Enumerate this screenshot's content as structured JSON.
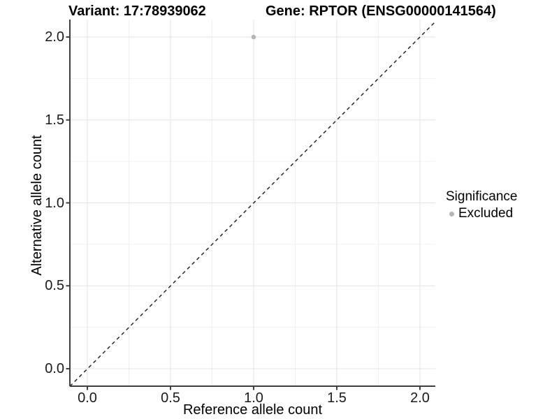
{
  "chart_data": {
    "type": "scatter",
    "title_left": "Variant: 17:78939062",
    "title_right": "Gene: RPTOR (ENSG00000141564)",
    "xlabel": "Reference allele count",
    "ylabel": "Alternative allele count",
    "xlim": [
      -0.105,
      2.09
    ],
    "ylim": [
      -0.106,
      2.105
    ],
    "x_ticks": [
      0.0,
      0.5,
      1.0,
      1.5,
      2.0
    ],
    "y_ticks": [
      0.0,
      0.5,
      1.0,
      1.5,
      2.0
    ],
    "x_tick_labels": [
      "0.0",
      "0.5",
      "1.0",
      "1.5",
      "2.0"
    ],
    "y_tick_labels": [
      "0.0",
      "0.5",
      "1.0",
      "1.5",
      "2.0"
    ],
    "minor_ticks": [
      0.25,
      0.75,
      1.25,
      1.75
    ],
    "grid": "major+minor",
    "points": [
      {
        "x": 1.0,
        "y": 2.0,
        "significance": "Excluded"
      }
    ],
    "reference_line": {
      "kind": "identity y=x",
      "style": "dashed",
      "color": "#1a1a1a"
    },
    "legend": {
      "title": "Significance",
      "position": "right",
      "entries": [
        {
          "label": "Excluded",
          "marker": "circle",
          "color": "#b5b5b5"
        }
      ]
    },
    "style": {
      "point_color": "#b5b5b5",
      "grid_major_color": "#e3e3e3",
      "grid_minor_color": "#f0f0f0",
      "axis_line_color": "#3f3f3f",
      "background": "#ffffff"
    }
  }
}
